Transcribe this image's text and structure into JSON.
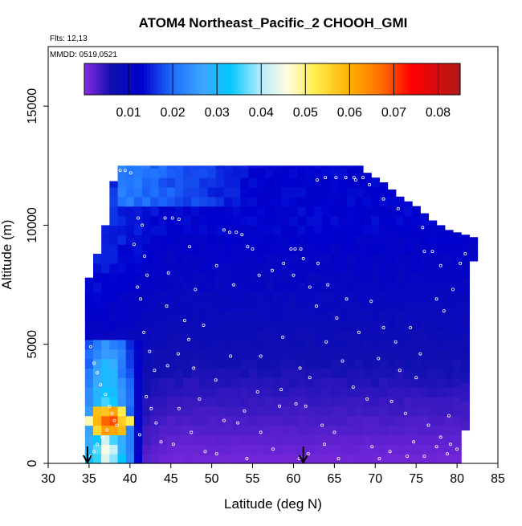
{
  "chart_data": {
    "type": "heatmap",
    "title": "ATOM4 Northeast_Pacific_2 CHOOH_GMI",
    "annotations": [
      "Flts: 12,13",
      "MMDD: 0519,0521"
    ],
    "xlabel": "Latitude (deg N)",
    "ylabel": "Altitude (m)",
    "xlim": [
      30,
      85
    ],
    "ylim": [
      0,
      17500
    ],
    "x_ticks": [
      30,
      35,
      40,
      45,
      50,
      55,
      60,
      65,
      70,
      75,
      80,
      85
    ],
    "y_ticks": [
      0,
      5000,
      10000,
      15000
    ],
    "colorbar": {
      "min": 0,
      "max": 0.085,
      "ticks": [
        0.01,
        0.02,
        0.03,
        0.04,
        0.05,
        0.06,
        0.07,
        0.08
      ],
      "tick_labels": [
        "0.01",
        "0.02",
        "0.03",
        "0.04",
        "0.05",
        "0.06",
        "0.07",
        "0.08"
      ],
      "stops": [
        {
          "v": 0.0,
          "color": "#8a2be2"
        },
        {
          "v": 0.006,
          "color": "#1010b0"
        },
        {
          "v": 0.013,
          "color": "#0000cd"
        },
        {
          "v": 0.02,
          "color": "#1e6eff"
        },
        {
          "v": 0.027,
          "color": "#3ca8ff"
        },
        {
          "v": 0.033,
          "color": "#00c8ff"
        },
        {
          "v": 0.04,
          "color": "#b8ecff"
        },
        {
          "v": 0.046,
          "color": "#fffde0"
        },
        {
          "v": 0.052,
          "color": "#ffee50"
        },
        {
          "v": 0.06,
          "color": "#ffb000"
        },
        {
          "v": 0.067,
          "color": "#ff7000"
        },
        {
          "v": 0.074,
          "color": "#ff0000"
        },
        {
          "v": 0.085,
          "color": "#b01818"
        }
      ]
    },
    "flight_arrows_lat": [
      34.8,
      61.2
    ],
    "profile_top": [
      [
        34.5,
        5000
      ],
      [
        35.0,
        7800
      ],
      [
        36.0,
        8800
      ],
      [
        37.0,
        10000
      ],
      [
        37.5,
        11200
      ],
      [
        38.5,
        12500
      ],
      [
        52.0,
        12500
      ],
      [
        60.0,
        12500
      ],
      [
        68.0,
        12500
      ],
      [
        69.0,
        12200
      ],
      [
        71.0,
        11800
      ],
      [
        73.0,
        11200
      ],
      [
        75.0,
        10800
      ],
      [
        77.0,
        10200
      ],
      [
        79.0,
        9800
      ],
      [
        81.0,
        9600
      ],
      [
        82.0,
        9500
      ]
    ],
    "profile_bottom": [
      [
        34.5,
        0
      ],
      [
        79.5,
        0
      ],
      [
        80.5,
        1400
      ],
      [
        81.0,
        8000
      ],
      [
        81.5,
        8500
      ]
    ],
    "high_region": {
      "lat_min": 35.0,
      "lat_max": 41.5,
      "alt_min": 0,
      "alt_max": 5000
    },
    "hotspot": {
      "lat": 37.5,
      "alt": 1800,
      "value": 0.078
    },
    "upper_band": {
      "lat_min": 38.5,
      "lat_max": 60.0,
      "alt_min": 11000,
      "alt_max": 12500,
      "value": 0.022
    },
    "background_value": 0.008,
    "sample_points": [
      [
        35.2,
        4900
      ],
      [
        35.6,
        4200
      ],
      [
        36.0,
        3800
      ],
      [
        36.4,
        3300
      ],
      [
        37.0,
        2900
      ],
      [
        37.5,
        2400
      ],
      [
        37.8,
        2100
      ],
      [
        38.1,
        1800
      ],
      [
        38.4,
        1600
      ],
      [
        37.2,
        1400
      ],
      [
        36.6,
        1100
      ],
      [
        36.0,
        800
      ],
      [
        35.6,
        500
      ],
      [
        35.2,
        300
      ],
      [
        38.8,
        12300
      ],
      [
        39.4,
        12300
      ],
      [
        40.1,
        12200
      ],
      [
        41.0,
        10300
      ],
      [
        41.5,
        10000
      ],
      [
        40.5,
        9200
      ],
      [
        41.8,
        8700
      ],
      [
        42.1,
        7900
      ],
      [
        40.9,
        7400
      ],
      [
        41.3,
        6900
      ],
      [
        41.7,
        5500
      ],
      [
        42.4,
        4700
      ],
      [
        43.0,
        3900
      ],
      [
        42.0,
        2800
      ],
      [
        42.6,
        2300
      ],
      [
        43.2,
        1700
      ],
      [
        41.2,
        1200
      ],
      [
        43.8,
        900
      ],
      [
        44.3,
        10300
      ],
      [
        45.2,
        10300
      ],
      [
        46.0,
        10250
      ],
      [
        47.3,
        9100
      ],
      [
        44.7,
        8000
      ],
      [
        44.5,
        6600
      ],
      [
        46.7,
        6000
      ],
      [
        48.0,
        7300
      ],
      [
        47.2,
        5200
      ],
      [
        49.0,
        5800
      ],
      [
        51.5,
        9800
      ],
      [
        52.2,
        9700
      ],
      [
        53.0,
        9700
      ],
      [
        53.7,
        9600
      ],
      [
        54.4,
        9100
      ],
      [
        55.0,
        9000
      ],
      [
        50.6,
        8300
      ],
      [
        52.7,
        7500
      ],
      [
        55.8,
        7900
      ],
      [
        57.4,
        8100
      ],
      [
        58.8,
        8400
      ],
      [
        59.7,
        9000
      ],
      [
        60.2,
        9000
      ],
      [
        60.9,
        9000
      ],
      [
        61.2,
        8600
      ],
      [
        60.0,
        7900
      ],
      [
        62.0,
        7400
      ],
      [
        63.0,
        8400
      ],
      [
        64.2,
        7500
      ],
      [
        62.8,
        6600
      ],
      [
        65.3,
        6100
      ],
      [
        66.5,
        6900
      ],
      [
        64.0,
        5100
      ],
      [
        68.0,
        5500
      ],
      [
        69.5,
        6800
      ],
      [
        71.0,
        5700
      ],
      [
        72.5,
        5100
      ],
      [
        74.3,
        5700
      ],
      [
        75.5,
        4600
      ],
      [
        77.5,
        6900
      ],
      [
        78.4,
        6400
      ],
      [
        79.5,
        7300
      ],
      [
        80.4,
        8400
      ],
      [
        81.0,
        8800
      ],
      [
        81.8,
        9600
      ],
      [
        76.0,
        8900
      ],
      [
        77.0,
        8900
      ],
      [
        78.0,
        8300
      ],
      [
        75.8,
        9900
      ],
      [
        72.8,
        10700
      ],
      [
        71.0,
        11100
      ],
      [
        69.3,
        11700
      ],
      [
        67.6,
        11900
      ],
      [
        62.9,
        11900
      ],
      [
        63.9,
        12000
      ],
      [
        65.2,
        12000
      ],
      [
        66.4,
        12000
      ],
      [
        67.4,
        12000
      ],
      [
        68.5,
        12000
      ],
      [
        56.0,
        4500
      ],
      [
        58.5,
        3100
      ],
      [
        60.3,
        2500
      ],
      [
        61.5,
        2400
      ],
      [
        63.5,
        1600
      ],
      [
        65.0,
        1300
      ],
      [
        67.3,
        3200
      ],
      [
        69.0,
        2700
      ],
      [
        72.0,
        2600
      ],
      [
        73.7,
        2100
      ],
      [
        76.5,
        1600
      ],
      [
        78.0,
        1100
      ],
      [
        79.2,
        800
      ],
      [
        79.0,
        2000
      ],
      [
        75.0,
        3600
      ],
      [
        73.0,
        3900
      ],
      [
        70.4,
        4400
      ],
      [
        66.0,
        4300
      ],
      [
        62.0,
        3600
      ],
      [
        60.8,
        4000
      ],
      [
        58.3,
        2400
      ],
      [
        56.0,
        1300
      ],
      [
        54.0,
        2200
      ],
      [
        53.2,
        1700
      ],
      [
        51.5,
        1800
      ],
      [
        50.5,
        3500
      ],
      [
        48.5,
        2700
      ],
      [
        46.0,
        2300
      ],
      [
        47.5,
        1300
      ],
      [
        45.3,
        800
      ],
      [
        49.2,
        500
      ],
      [
        50.6,
        400
      ],
      [
        54.3,
        200
      ],
      [
        57.5,
        600
      ],
      [
        61.8,
        400
      ],
      [
        60.7,
        200
      ],
      [
        63.8,
        800
      ],
      [
        65.5,
        200
      ],
      [
        69.6,
        700
      ],
      [
        70.5,
        200
      ],
      [
        71.8,
        500
      ],
      [
        73.9,
        300
      ],
      [
        74.7,
        900
      ],
      [
        76.0,
        300
      ],
      [
        77.5,
        700
      ],
      [
        78.8,
        400
      ],
      [
        80.0,
        600
      ],
      [
        45.9,
        4600
      ],
      [
        44.6,
        4100
      ],
      [
        47.8,
        4000
      ],
      [
        52.3,
        4500
      ],
      [
        55.6,
        3000
      ],
      [
        58.7,
        5300
      ]
    ]
  }
}
